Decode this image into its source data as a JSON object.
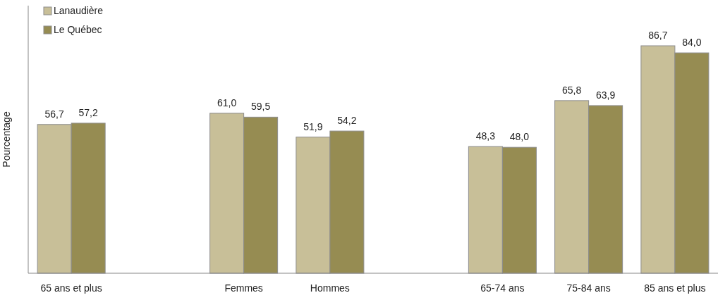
{
  "chart_data": {
    "type": "bar",
    "ylabel": "Pourcentage",
    "categories": [
      "65 ans et plus",
      null,
      "Femmes",
      "Hommes",
      null,
      "65-74 ans",
      "75-84 ans",
      "85 ans et plus"
    ],
    "series": [
      {
        "name": "Lanaudière",
        "color": "#c8bf98",
        "values": [
          56.7,
          null,
          61.0,
          51.9,
          null,
          48.3,
          65.8,
          86.7
        ],
        "value_labels": [
          "56,7",
          null,
          "61,0",
          "51,9",
          null,
          "48,3",
          "65,8",
          "86,7"
        ]
      },
      {
        "name": "Le Québec",
        "color": "#968c52",
        "values": [
          57.2,
          null,
          59.5,
          54.2,
          null,
          48.0,
          63.9,
          84.0
        ],
        "value_labels": [
          "57,2",
          null,
          "59,5",
          "54,2",
          null,
          "48,0",
          "63,9",
          "84,0"
        ]
      }
    ],
    "legend": "top left"
  }
}
